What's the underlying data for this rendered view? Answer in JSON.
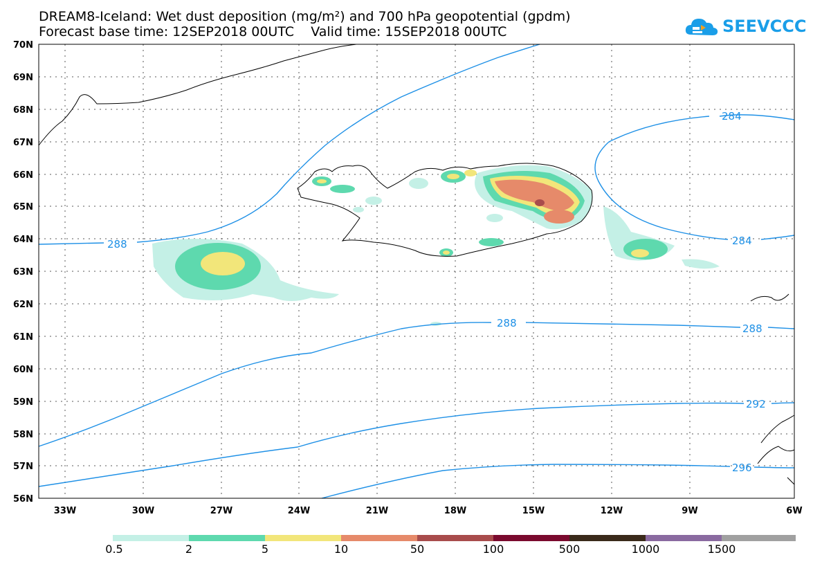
{
  "header": {
    "title_line1": "DREAM8-Iceland: Wet dust deposition (mg/m²) and 700 hPa geopotential (gpdm)",
    "title_line2": "Forecast base time: 12SEP2018 00UTC    Valid time: 15SEP2018 00UTC",
    "logo_text": "SEEVCCC",
    "logo_icon": "cloud-icon"
  },
  "map": {
    "lon_range": [
      -34.5,
      -6
    ],
    "lat_range": [
      56,
      70
    ],
    "lat_labels": [
      "70N",
      "69N",
      "68N",
      "67N",
      "66N",
      "65N",
      "64N",
      "63N",
      "62N",
      "61N",
      "60N",
      "59N",
      "58N",
      "57N",
      "56N"
    ],
    "lon_labels": [
      "33W",
      "30W",
      "27W",
      "24W",
      "21W",
      "18W",
      "15W",
      "12W",
      "9W",
      "6W"
    ],
    "contour_labels": [
      "288",
      "284",
      "284",
      "288",
      "288",
      "292",
      "296"
    ],
    "contour_color": "#1e90e6"
  },
  "legend": {
    "labels": [
      "0.5",
      "2",
      "5",
      "10",
      "50",
      "100",
      "500",
      "1000",
      "1500"
    ],
    "colors": [
      "#c4f0e6",
      "#5ed9ae",
      "#f2e67a",
      "#e68a6a",
      "#a84c4c",
      "#7a0a2e",
      "#3a2a1a",
      "#8a6aa0",
      "#a0a0a0"
    ]
  }
}
